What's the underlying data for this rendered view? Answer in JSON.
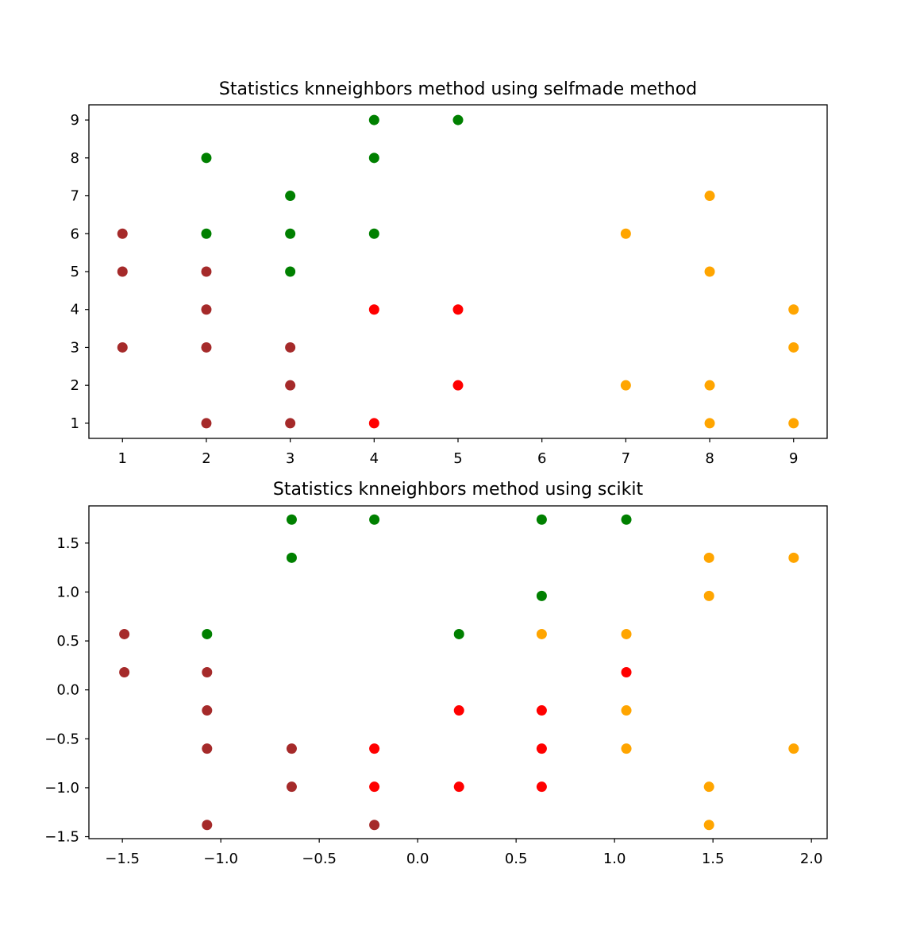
{
  "colors": {
    "brown": "#a52a2a",
    "green": "#008000",
    "red": "#ff0000",
    "orange": "#ffa500"
  },
  "chart_data": [
    {
      "type": "scatter",
      "title": "Statistics knneighbors method using selfmade method",
      "xlabel": "",
      "ylabel": "",
      "xlim": [
        0.6,
        9.4
      ],
      "ylim": [
        0.6,
        9.4
      ],
      "xticks": [
        1,
        2,
        3,
        4,
        5,
        6,
        7,
        8,
        9
      ],
      "yticks": [
        1,
        2,
        3,
        4,
        5,
        6,
        7,
        8,
        9
      ],
      "xtick_labels": [
        "1",
        "2",
        "3",
        "4",
        "5",
        "6",
        "7",
        "8",
        "9"
      ],
      "ytick_labels": [
        "1",
        "2",
        "3",
        "4",
        "5",
        "6",
        "7",
        "8",
        "9"
      ],
      "grid": false,
      "series": [
        {
          "color": "brown",
          "points": [
            [
              1,
              6
            ],
            [
              1,
              5
            ],
            [
              1,
              3
            ],
            [
              2,
              5
            ],
            [
              2,
              4
            ],
            [
              2,
              3
            ],
            [
              2,
              1
            ],
            [
              3,
              3
            ],
            [
              3,
              2
            ],
            [
              3,
              1
            ]
          ]
        },
        {
          "color": "green",
          "points": [
            [
              2,
              8
            ],
            [
              2,
              6
            ],
            [
              3,
              7
            ],
            [
              3,
              6
            ],
            [
              3,
              5
            ],
            [
              4,
              9
            ],
            [
              4,
              8
            ],
            [
              4,
              6
            ],
            [
              5,
              9
            ]
          ]
        },
        {
          "color": "red",
          "points": [
            [
              4,
              4
            ],
            [
              4,
              1
            ],
            [
              5,
              4
            ],
            [
              5,
              2
            ]
          ]
        },
        {
          "color": "orange",
          "points": [
            [
              7,
              6
            ],
            [
              7,
              2
            ],
            [
              8,
              7
            ],
            [
              8,
              5
            ],
            [
              8,
              2
            ],
            [
              8,
              1
            ],
            [
              9,
              4
            ],
            [
              9,
              3
            ],
            [
              9,
              1
            ]
          ]
        }
      ]
    },
    {
      "type": "scatter",
      "title": "Statistics knneighbors method using scikit",
      "xlabel": "",
      "ylabel": "",
      "xlim": [
        -1.67,
        2.08
      ],
      "ylim": [
        -1.52,
        1.88
      ],
      "xticks": [
        -1.5,
        -1.0,
        -0.5,
        0.0,
        0.5,
        1.0,
        1.5,
        2.0
      ],
      "yticks": [
        -1.5,
        -1.0,
        -0.5,
        0.0,
        0.5,
        1.0,
        1.5
      ],
      "xtick_labels": [
        "−1.5",
        "−1.0",
        "−0.5",
        "0.0",
        "0.5",
        "1.0",
        "1.5",
        "2.0"
      ],
      "ytick_labels": [
        "−1.5",
        "−1.0",
        "−0.5",
        "0.0",
        "0.5",
        "1.0",
        "1.5"
      ],
      "grid": false,
      "series": [
        {
          "color": "brown",
          "points": [
            [
              -1.49,
              0.57
            ],
            [
              -1.49,
              0.18
            ],
            [
              -1.07,
              0.18
            ],
            [
              -1.07,
              -0.21
            ],
            [
              -1.07,
              -0.6
            ],
            [
              -1.07,
              -1.38
            ],
            [
              -0.64,
              -0.6
            ],
            [
              -0.64,
              -0.99
            ],
            [
              -0.22,
              -1.38
            ]
          ]
        },
        {
          "color": "green",
          "points": [
            [
              -1.07,
              0.57
            ],
            [
              -0.64,
              1.74
            ],
            [
              -0.64,
              1.35
            ],
            [
              -0.22,
              1.74
            ],
            [
              0.21,
              0.57
            ],
            [
              0.63,
              1.74
            ],
            [
              0.63,
              0.96
            ],
            [
              1.06,
              1.74
            ]
          ]
        },
        {
          "color": "red",
          "points": [
            [
              -0.22,
              -0.6
            ],
            [
              -0.22,
              -0.99
            ],
            [
              0.21,
              -0.21
            ],
            [
              0.21,
              -0.99
            ],
            [
              0.63,
              -0.21
            ],
            [
              0.63,
              -0.6
            ],
            [
              0.63,
              -0.99
            ],
            [
              1.06,
              0.18
            ]
          ]
        },
        {
          "color": "orange",
          "points": [
            [
              0.63,
              0.57
            ],
            [
              1.06,
              0.57
            ],
            [
              1.06,
              -0.21
            ],
            [
              1.06,
              -0.6
            ],
            [
              1.48,
              1.35
            ],
            [
              1.48,
              0.96
            ],
            [
              1.48,
              -0.99
            ],
            [
              1.48,
              -1.38
            ],
            [
              1.91,
              1.35
            ],
            [
              1.91,
              -0.6
            ]
          ]
        }
      ]
    }
  ]
}
